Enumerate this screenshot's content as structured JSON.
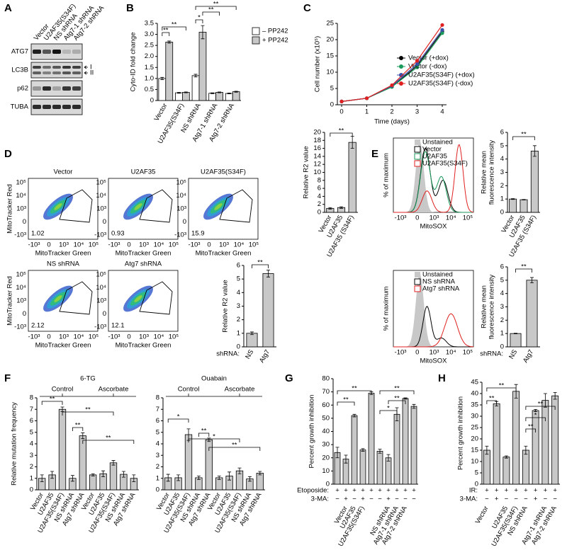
{
  "panel_labels": [
    "A",
    "B",
    "C",
    "D",
    "E",
    "F",
    "G",
    "H"
  ],
  "blot": {
    "columns": [
      "Vector",
      "U2AF35(S34F)",
      "NS shRNA",
      "Atg7-1 shRNA",
      "Atg7-2 shRNA"
    ],
    "rows": [
      "ATG7",
      "LC3B",
      "p62",
      "TUBA"
    ],
    "band_labels": [
      "I",
      "II"
    ]
  },
  "flow_plots": {
    "ylabel": "MitoTracker Red",
    "xlabel": "MitoTracker Green",
    "xticks": [
      "-10³",
      "0",
      "10³",
      "10⁴",
      "10⁵"
    ],
    "yticks": [
      "10⁵",
      "10⁴",
      "10³",
      "0",
      "-10³"
    ],
    "plots": [
      {
        "title": "Vector",
        "gate": 1.02
      },
      {
        "title": "U2AF35",
        "gate": 0.93
      },
      {
        "title": "U2AF35(S34F)",
        "gate": 15.9
      },
      {
        "title": "NS shRNA",
        "gate": 2.12
      },
      {
        "title": "Atg7 shRNA",
        "gate": 12.1
      }
    ]
  },
  "histograms": {
    "ylabel": "% of maximum",
    "xlabel": "MitoSOX",
    "xticks": [
      "-10³",
      "0",
      "10³",
      "10⁴",
      "10⁵"
    ],
    "plots": [
      {
        "legend": [
          {
            "name": "Unstained",
            "color": "#c8c8c8"
          },
          {
            "name": "Vector",
            "color": "#000000"
          },
          {
            "name": "U2AF35",
            "color": "#1a9a5a"
          },
          {
            "name": "U2AF35(S34F)",
            "color": "#e02020"
          }
        ]
      },
      {
        "legend": [
          {
            "name": "Unstained",
            "color": "#c8c8c8"
          },
          {
            "name": "NS shRNA",
            "color": "#000000"
          },
          {
            "name": "Atg7 shRNA",
            "color": "#e02020"
          }
        ]
      }
    ]
  },
  "chart_data": [
    {
      "type": "bar",
      "ylabel": "Cyto-ID fold change",
      "categories": [
        "Vector",
        "U2AF35(S34F)",
        "NS shRNA",
        "Atg7-1 shRNA",
        "Atg7-2 shRNA"
      ],
      "series": [
        {
          "name": "– PP242",
          "color": "#ffffff",
          "values": [
            1.0,
            0.35,
            1.13,
            0.33,
            0.32
          ],
          "errors": [
            0.05,
            0.02,
            0.06,
            0.02,
            0.02
          ]
        },
        {
          "name": "+ PP242",
          "color": "#c8c8c8",
          "values": [
            2.65,
            0.37,
            3.1,
            0.37,
            0.4
          ],
          "errors": [
            0.05,
            0.02,
            0.3,
            0.02,
            0.02
          ]
        }
      ],
      "ylim": [
        0,
        3.5
      ],
      "yticks": [
        0,
        0.5,
        {
          "value": 1,
          "label": "1.0"
        },
        1.5,
        {
          "value": 2,
          "label": "2.0"
        },
        2.5,
        {
          "value": 3,
          "label": "3.0"
        },
        3.5
      ],
      "annotations": [
        "**",
        "**",
        "*",
        "**",
        "**"
      ]
    },
    {
      "type": "line",
      "xlabel": "Time (days)",
      "ylabel": "Cell number (x10⁵)",
      "x": [
        0,
        1,
        2,
        3,
        4
      ],
      "xlim": [
        0,
        4
      ],
      "xticks": [
        0,
        1,
        2,
        3,
        4
      ],
      "ylim": [
        0,
        25
      ],
      "yticks": [
        0,
        5,
        10,
        15,
        20,
        25
      ],
      "series": [
        {
          "name": "Vector (+dox)",
          "color": "#000000",
          "values": [
            1,
            2,
            5.5,
            12,
            22.5
          ]
        },
        {
          "name": "Vector (-dox)",
          "color": "#1a9a5a",
          "values": [
            1,
            2,
            5.5,
            11.5,
            22
          ]
        },
        {
          "name": "U2AF35(S34F) (+dox)",
          "color": "#3a4fa8",
          "values": [
            1,
            2,
            5.8,
            12.5,
            23
          ]
        },
        {
          "name": "U2AF35(S34F) (-dox)",
          "color": "#e02020",
          "values": [
            1,
            2,
            6,
            13.5,
            24.5
          ]
        }
      ]
    },
    {
      "type": "bar",
      "ylabel": "Relative R2 value",
      "categories": [
        "Vector",
        "U2AF35",
        "U2AF35 (S34F)"
      ],
      "series": [
        {
          "color": "#c8c8c8",
          "values": [
            1,
            1.2,
            17.5
          ],
          "errors": [
            0.2,
            0.2,
            1.5
          ]
        }
      ],
      "ylim": [
        0,
        20
      ],
      "yticks": [
        0,
        2,
        4,
        6,
        8,
        10,
        12,
        14,
        16,
        18,
        20
      ],
      "annotations": [
        "**"
      ]
    },
    {
      "type": "bar",
      "ylabel": "Relative R2 value",
      "category_prefix": "shRNA:",
      "categories": [
        "NS",
        "Atg7"
      ],
      "series": [
        {
          "color": "#c8c8c8",
          "values": [
            1,
            5.4
          ],
          "errors": [
            0.1,
            0.25
          ]
        }
      ],
      "ylim": [
        0,
        6
      ],
      "yticks": [
        0,
        1,
        2,
        3,
        4,
        5,
        6
      ],
      "annotations": [
        "**"
      ]
    },
    {
      "type": "bar",
      "ylabel": "Relative mean fluorescence intensity",
      "categories": [
        "Vector",
        "U2AF35",
        "U2AF35 (S34F)"
      ],
      "series": [
        {
          "color": "#c8c8c8",
          "values": [
            1,
            0.95,
            4.6
          ],
          "errors": [
            0.03,
            0.02,
            0.4
          ]
        }
      ],
      "ylim": [
        0,
        6
      ],
      "yticks": [
        0,
        1,
        2,
        3,
        4,
        5,
        6
      ],
      "annotations": [
        "**"
      ]
    },
    {
      "type": "bar",
      "ylabel": "Relative mean fluorescence intensity",
      "category_prefix": "shRNA:",
      "categories": [
        "NS",
        "Atg7"
      ],
      "series": [
        {
          "color": "#c8c8c8",
          "values": [
            1,
            5
          ],
          "errors": [
            0.02,
            0.2
          ]
        }
      ],
      "ylim": [
        0,
        6
      ],
      "yticks": [
        0,
        1,
        2,
        3,
        4,
        5,
        6
      ],
      "annotations": [
        "**"
      ]
    },
    {
      "type": "bar",
      "title": "6-TG",
      "ylabel": "Relative mutation frequency",
      "groups": [
        "Control",
        "Ascorbate"
      ],
      "categories": [
        "Vector",
        "U2AF35",
        "U2AF35(S34F)",
        "NS shRNA",
        "Atg7 shRNA",
        "Vector",
        "U2AF35",
        "U2AF35(S34F)",
        "NS shRNA",
        "Atg7 shRNA"
      ],
      "series": [
        {
          "color": "#c8c8c8",
          "values": [
            1,
            1.3,
            7,
            1,
            4.7,
            1.3,
            1.4,
            2.35,
            1.35,
            1
          ],
          "errors": [
            0.3,
            0.3,
            0.2,
            0.25,
            0.25,
            0.1,
            0.25,
            0.2,
            0.25,
            0.3
          ]
        }
      ],
      "ylim": [
        0,
        8
      ],
      "yticks": [
        0,
        1,
        2,
        3,
        4,
        5,
        6,
        7,
        8
      ],
      "annotations": [
        "**",
        "**",
        "**",
        "**"
      ]
    },
    {
      "type": "bar",
      "title": "Ouabain",
      "groups": [
        "Control",
        "Ascorbate"
      ],
      "categories": [
        "Vector",
        "U2AF35",
        "U2AF35(S34F)",
        "NS shRNA",
        "Atg7 shRNA",
        "Vector",
        "U2AF35",
        "U2AF35(S34F)",
        "NS shRNA",
        "Atg7 shRNA"
      ],
      "series": [
        {
          "color": "#c8c8c8",
          "values": [
            1.05,
            1.05,
            4.8,
            1.05,
            4.35,
            1.05,
            1.2,
            1.65,
            0.95,
            1.45
          ],
          "errors": [
            0.3,
            0.25,
            0.5,
            0.15,
            0.15,
            0.15,
            0.35,
            0.25,
            0.2,
            0.15
          ]
        }
      ],
      "ylim": [
        0,
        8
      ],
      "yticks": [
        0,
        1,
        2,
        3,
        4,
        5,
        6,
        7,
        8
      ],
      "annotations": [
        "*",
        "**",
        "*",
        "**"
      ]
    },
    {
      "type": "bar",
      "ylabel": "Percent growth inhibition",
      "row_labels": [
        "Etoposide:",
        "3-MA:"
      ],
      "rows": [
        [
          "+",
          "+",
          "+",
          "+",
          "+",
          "+",
          "+",
          "+",
          "+",
          "+"
        ],
        [
          "−",
          "+",
          "−",
          "+",
          "−",
          "−",
          "+",
          "−",
          "−",
          "−"
        ]
      ],
      "categories": [
        null,
        "Vector",
        "U2AF35",
        "U2AF35(S34F)",
        null,
        null,
        "NS shRNA",
        "Atg7-1 shRNA",
        "Atg7-2 shRNA",
        null
      ],
      "series": [
        {
          "color": "#c8c8c8",
          "values": [
            24,
            19,
            52,
            26,
            69,
            25,
            20,
            53,
            65,
            59
          ],
          "errors": [
            4,
            3,
            1,
            1,
            1,
            1.5,
            2.5,
            5,
            0.5,
            1.5
          ]
        }
      ],
      "ylim": [
        0,
        80
      ],
      "yticks": [
        0,
        10,
        20,
        30,
        40,
        50,
        60,
        70,
        80
      ],
      "annotations": [
        "**",
        "**",
        "*",
        "**",
        "**"
      ]
    },
    {
      "type": "bar",
      "ylabel": "Percent growth inhibition",
      "row_labels": [
        "IR:",
        "3-MA:"
      ],
      "rows": [
        [
          "+",
          "+",
          "+",
          "+",
          "+",
          "+",
          "+",
          "+"
        ],
        [
          "−",
          "+",
          "−",
          "−",
          "−",
          "+",
          "−",
          "−"
        ]
      ],
      "categories": [
        "Vector",
        null,
        "U2AF35",
        "U2AF35(S34F)",
        "NS shRNA",
        null,
        "Atg7-1 shRNA",
        "Atg7-2 shRNA"
      ],
      "series": [
        {
          "color": "#c8c8c8",
          "values": [
            15,
            35.5,
            12,
            41,
            15,
            32.5,
            37,
            39
          ],
          "errors": [
            1.8,
            1,
            0.5,
            3,
            1.8,
            0.5,
            3,
            1.5
          ]
        }
      ],
      "ylim": [
        0,
        45
      ],
      "yticks": [
        0,
        5,
        10,
        15,
        20,
        25,
        30,
        35,
        40,
        45
      ],
      "annotations": [
        "**",
        "**",
        "**",
        "*",
        "**"
      ]
    }
  ]
}
